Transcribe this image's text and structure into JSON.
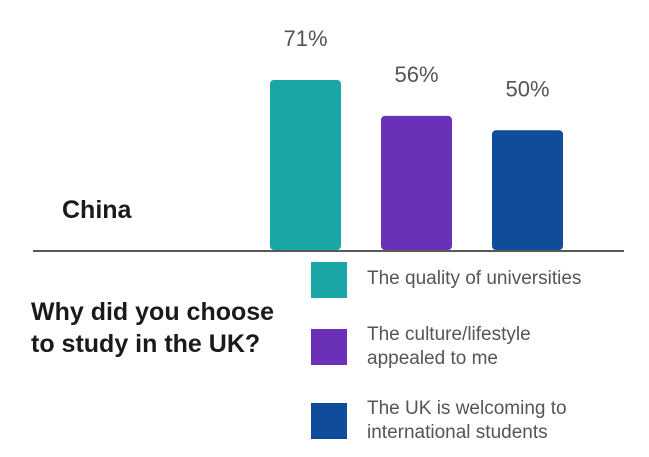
{
  "chart_data": {
    "type": "bar",
    "region": "China",
    "question": "Why did you choose to study in the UK?",
    "categories": [
      "The quality of universities",
      "The culture/lifestyle appealed to me",
      "The UK is welcoming to international students"
    ],
    "legend_lines": [
      [
        "The quality of universities"
      ],
      [
        "The culture/lifestyle",
        "appealed to me"
      ],
      [
        "The UK is welcoming to",
        "international students"
      ]
    ],
    "values": [
      71,
      56,
      50
    ],
    "value_labels": [
      "71%",
      "56%",
      "50%"
    ],
    "colors": [
      "#1AA6A6",
      "#6A31B8",
      "#0F4C9A"
    ],
    "ylim": [
      0,
      100
    ],
    "grid": false,
    "legend_position": "bottom-right"
  }
}
